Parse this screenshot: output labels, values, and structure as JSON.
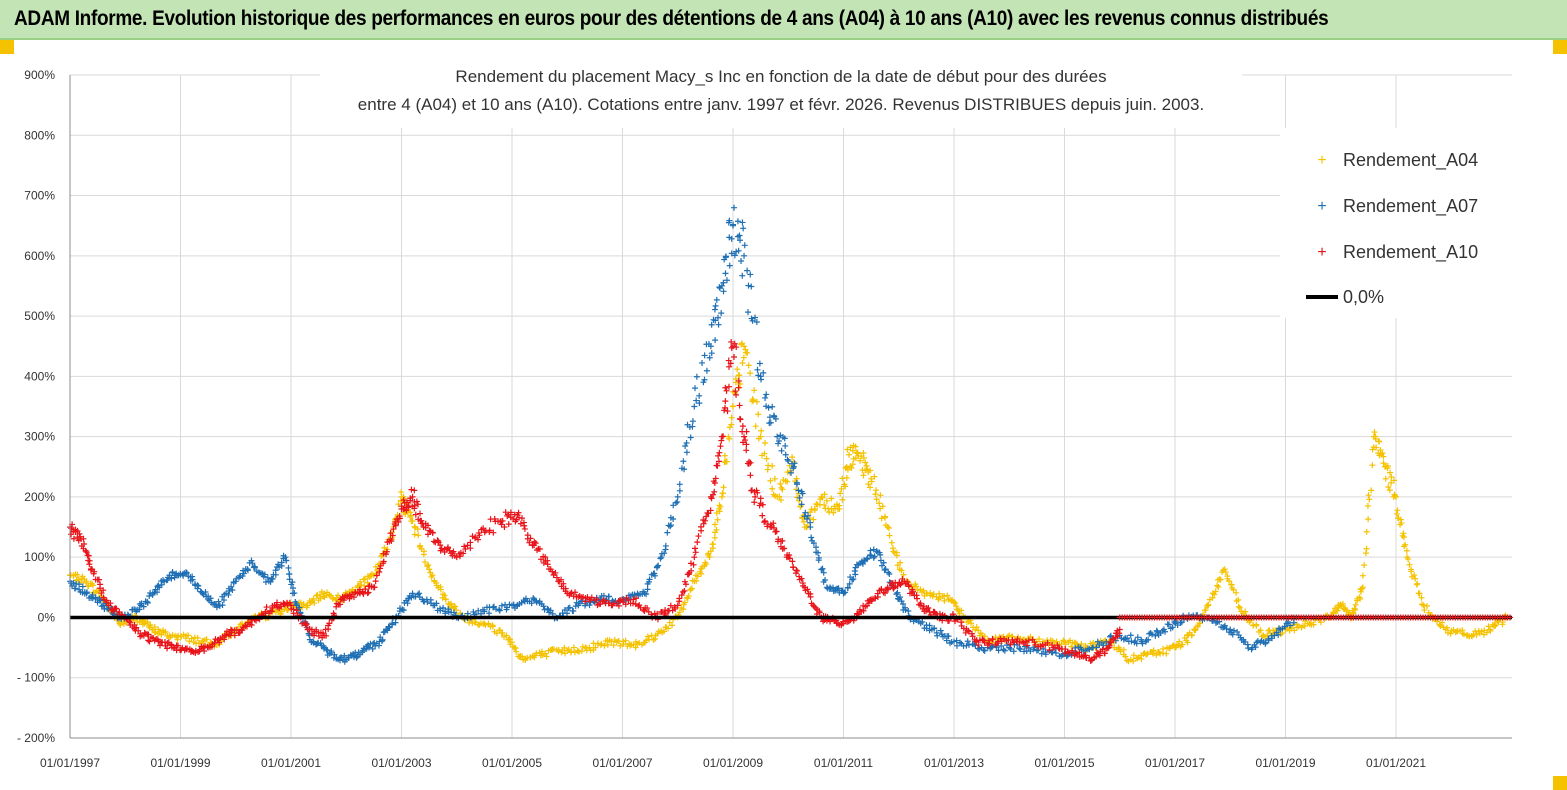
{
  "banner": {
    "title": "ADAM Informe. Evolution historique des performances en euros pour des détentions de 4 ans (A04) à 10 ans (A10) avec les revenus connus distribués"
  },
  "colors": {
    "banner_bg": "#c3e5b5",
    "a04": "#f5c200",
    "a07": "#1f6fb4",
    "a10": "#e8141a",
    "zero": "#000000"
  },
  "chart_data": {
    "type": "scatter",
    "title_lines": [
      "Rendement du placement Macy_s Inc en fonction de la date de début pour des durées",
      "entre 4 (A04) et 10 ans (A10).  Cotations entre janv. 1997 et févr. 2026. Revenus DISTRIBUES depuis juin. 2003."
    ],
    "xlabel": "",
    "ylabel": "",
    "x_range": [
      1997.0,
      2023.1
    ],
    "ylim": [
      -200,
      900
    ],
    "y_ticks": [
      900,
      800,
      700,
      600,
      500,
      400,
      300,
      200,
      100,
      0,
      -100,
      -200
    ],
    "y_tick_labels": [
      "900%",
      "800%",
      "700%",
      "600%",
      "500%",
      "400%",
      "300%",
      "200%",
      "100%",
      "0%",
      "- 100%",
      "- 200%"
    ],
    "x_ticks": [
      1997,
      1999,
      2001,
      2003,
      2005,
      2007,
      2009,
      2011,
      2013,
      2015,
      2017,
      2019,
      2021
    ],
    "x_tick_labels": [
      "01/01/1997",
      "01/01/1999",
      "01/01/2001",
      "01/01/2003",
      "01/01/2005",
      "01/01/2007",
      "01/01/2009",
      "01/01/2011",
      "01/01/2013",
      "01/01/2015",
      "01/01/2017",
      "01/01/2019",
      "01/01/2021"
    ],
    "grid": true,
    "legend_position": "top-right",
    "legend": [
      "Rendement_A04",
      "Rendement_A07",
      "Rendement_A10",
      "0,0%"
    ],
    "series": [
      {
        "name": "Rendement_A04",
        "marker": "plus",
        "x": [
          1997.0,
          1997.3,
          1997.6,
          1997.9,
          1998.2,
          1998.5,
          1998.8,
          1999.2,
          1999.6,
          2000.0,
          2000.4,
          2000.8,
          2001.0,
          2001.3,
          2001.6,
          2001.9,
          2002.2,
          2002.5,
          2002.8,
          2003.0,
          2003.2,
          2003.5,
          2003.8,
          2004.1,
          2004.5,
          2004.9,
          2005.2,
          2005.6,
          2006.0,
          2006.4,
          2006.8,
          2007.2,
          2007.6,
          2008.0,
          2008.3,
          2008.6,
          2008.8,
          2009.0,
          2009.2,
          2009.5,
          2009.8,
          2010.1,
          2010.3,
          2010.6,
          2010.9,
          2011.1,
          2011.3,
          2011.5,
          2011.8,
          2012.1,
          2012.5,
          2012.9,
          2013.2,
          2013.6,
          2014.0,
          2014.5,
          2015.0,
          2015.4,
          2015.8,
          2016.2,
          2016.6,
          2017.0,
          2017.3,
          2017.6,
          2017.9,
          2018.2,
          2018.6,
          2019.0,
          2019.4,
          2019.8,
          2020.0,
          2020.2,
          2020.4,
          2020.6,
          2020.8,
          2021.0,
          2021.2,
          2021.5,
          2021.9,
          2022.3,
          2022.7,
          2023.0
        ],
        "y": [
          70,
          60,
          30,
          -10,
          0,
          -20,
          -30,
          -35,
          -45,
          -20,
          0,
          10,
          20,
          20,
          40,
          30,
          50,
          70,
          130,
          200,
          160,
          80,
          30,
          0,
          -10,
          -30,
          -70,
          -60,
          -55,
          -50,
          -40,
          -45,
          -30,
          0,
          60,
          110,
          200,
          350,
          450,
          300,
          200,
          250,
          150,
          200,
          180,
          270,
          260,
          230,
          150,
          60,
          40,
          30,
          0,
          -40,
          -30,
          -40,
          -40,
          -50,
          -40,
          -70,
          -60,
          -50,
          -30,
          20,
          80,
          10,
          -30,
          -20,
          -10,
          0,
          20,
          0,
          50,
          300,
          250,
          200,
          100,
          20,
          -20,
          -30,
          -20,
          0
        ]
      },
      {
        "name": "Rendement_A07",
        "marker": "plus",
        "x": [
          1997.0,
          1997.3,
          1997.6,
          1997.9,
          1998.2,
          1998.5,
          1998.8,
          1999.1,
          1999.4,
          1999.7,
          2000.0,
          2000.3,
          2000.6,
          2000.9,
          2001.1,
          2001.4,
          2001.7,
          2002.0,
          2002.3,
          2002.6,
          2002.9,
          2003.2,
          2003.6,
          2004.0,
          2004.5,
          2005.0,
          2005.4,
          2005.8,
          2006.2,
          2006.6,
          2007.0,
          2007.4,
          2007.7,
          2008.0,
          2008.3,
          2008.6,
          2008.8,
          2009.0,
          2009.2,
          2009.5,
          2009.8,
          2010.1,
          2010.4,
          2010.7,
          2011.0,
          2011.3,
          2011.6,
          2011.9,
          2012.2,
          2012.6,
          2013.0,
          2013.5,
          2014.0,
          2014.5,
          2015.0,
          2015.5,
          2016.0,
          2016.4,
          2016.8,
          2017.2,
          2017.6,
          2018.0,
          2018.4,
          2018.8,
          2019.2
        ],
        "y": [
          60,
          40,
          20,
          0,
          10,
          40,
          70,
          75,
          40,
          20,
          60,
          90,
          60,
          100,
          20,
          -40,
          -60,
          -70,
          -55,
          -40,
          0,
          40,
          20,
          0,
          10,
          20,
          30,
          0,
          20,
          30,
          30,
          40,
          100,
          200,
          350,
          450,
          550,
          650,
          600,
          400,
          300,
          250,
          150,
          50,
          40,
          90,
          110,
          50,
          0,
          -20,
          -40,
          -50,
          -50,
          -55,
          -60,
          -50,
          -30,
          -40,
          -20,
          0,
          0,
          -20,
          -50,
          -30,
          0
        ]
      },
      {
        "name": "Rendement_A10",
        "marker": "plus",
        "x": [
          1997.0,
          1997.2,
          1997.4,
          1997.7,
          1998.0,
          1998.3,
          1998.6,
          1998.9,
          1999.2,
          1999.5,
          1999.8,
          2000.1,
          2000.4,
          2000.7,
          2001.0,
          2001.3,
          2001.6,
          2001.9,
          2002.2,
          2002.5,
          2002.8,
          2003.0,
          2003.2,
          2003.4,
          2003.7,
          2004.0,
          2004.4,
          2004.8,
          2005.1,
          2005.4,
          2005.7,
          2006.0,
          2006.4,
          2006.8,
          2007.2,
          2007.6,
          2008.0,
          2008.3,
          2008.6,
          2008.8,
          2009.0,
          2009.2,
          2009.4,
          2009.7,
          2010.0,
          2010.3,
          2010.6,
          2010.9,
          2011.2,
          2011.5,
          2011.8,
          2012.1,
          2012.4,
          2012.7,
          2013.0,
          2013.4,
          2013.8,
          2014.3,
          2014.8,
          2015.2,
          2015.5,
          2015.8,
          2016.0
        ],
        "y": [
          150,
          130,
          80,
          20,
          0,
          -30,
          -40,
          -50,
          -55,
          -50,
          -30,
          -20,
          0,
          20,
          20,
          -20,
          -30,
          30,
          40,
          50,
          130,
          180,
          200,
          150,
          120,
          100,
          140,
          160,
          170,
          120,
          80,
          40,
          30,
          20,
          30,
          0,
          20,
          100,
          200,
          300,
          450,
          300,
          200,
          150,
          100,
          50,
          0,
          -10,
          0,
          30,
          50,
          60,
          20,
          0,
          0,
          -40,
          -40,
          -40,
          -50,
          -60,
          -70,
          -50,
          -20
        ]
      },
      {
        "name": "0,0%",
        "marker": "line",
        "x": [
          1997.0,
          2023.1
        ],
        "y": [
          0,
          0
        ]
      }
    ]
  }
}
